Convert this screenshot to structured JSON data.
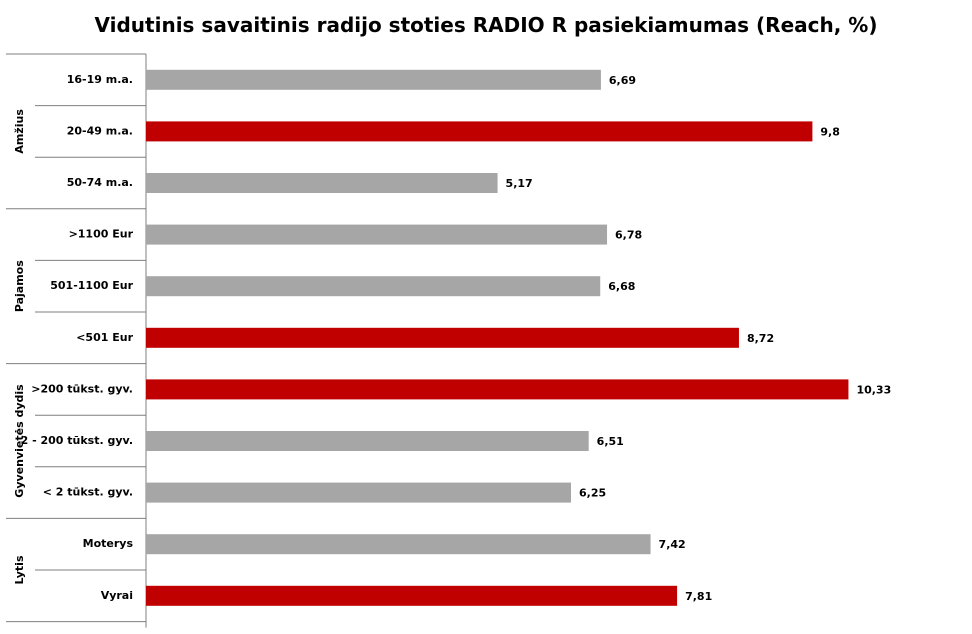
{
  "chart_data": {
    "type": "bar",
    "orientation": "horizontal",
    "title": "Vidutinis savaitinis radijo stoties RADIO R pasiekiamumas (Reach, %)",
    "xlim": [
      0,
      11
    ],
    "grid": false,
    "legend": "none",
    "colors": {
      "highlight": "#C00000",
      "normal": "#A6A6A6"
    },
    "groups": [
      {
        "name": "Amžius",
        "count": 3
      },
      {
        "name": "Pajamos",
        "count": 3
      },
      {
        "name": "Gyvenvietės dydis",
        "count": 3
      },
      {
        "name": "Lytis",
        "count": 2
      }
    ],
    "categories": [
      "16-19 m.a.",
      "20-49 m.a.",
      "50-74 m.a.",
      ">1100 Eur",
      "501-1100 Eur",
      "<501 Eur",
      ">200 tūkst. gyv.",
      "2 - 200 tūkst. gyv.",
      "< 2 tūkst. gyv.",
      "Moterys",
      "Vyrai"
    ],
    "values": [
      6.69,
      9.8,
      5.17,
      6.78,
      6.68,
      8.72,
      10.33,
      6.51,
      6.25,
      7.42,
      7.81
    ],
    "value_labels": [
      "6,69",
      "9,8",
      "5,17",
      "6,78",
      "6,68",
      "8,72",
      "10,33",
      "6,51",
      "6,25",
      "7,42",
      "7,81"
    ],
    "highlighted": [
      false,
      true,
      false,
      false,
      false,
      true,
      true,
      false,
      false,
      false,
      true
    ]
  }
}
